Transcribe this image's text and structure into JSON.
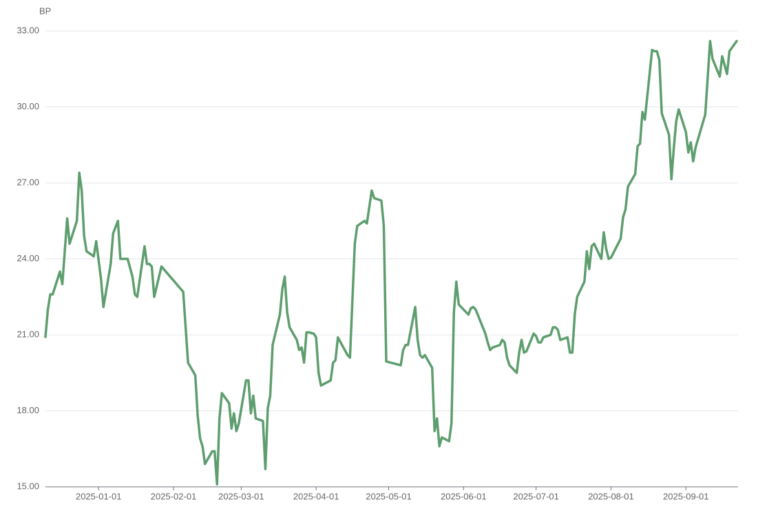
{
  "chart_data": {
    "type": "line",
    "y_label": "BP",
    "color": "#5e9e6e",
    "grid": true,
    "ylim": [
      15,
      33
    ],
    "yticks": [
      {
        "value": 15,
        "label": "15.00"
      },
      {
        "value": 18,
        "label": "18.00"
      },
      {
        "value": 21,
        "label": "21.00"
      },
      {
        "value": 24,
        "label": "24.00"
      },
      {
        "value": 27,
        "label": "27.00"
      },
      {
        "value": 30,
        "label": "30.00"
      },
      {
        "value": 33,
        "label": "33.00"
      }
    ],
    "xlim": [
      "2024-12-10",
      "2025-09-22"
    ],
    "xticks": [
      "2025-01-01",
      "2025-02-01",
      "2025-03-01",
      "2025-04-01",
      "2025-05-01",
      "2025-06-01",
      "2025-07-01",
      "2025-08-01",
      "2025-09-01"
    ],
    "x": [
      "2024-12-10",
      "2024-12-11",
      "2024-12-12",
      "2024-12-13",
      "2024-12-16",
      "2024-12-17",
      "2024-12-19",
      "2024-12-20",
      "2024-12-23",
      "2024-12-24",
      "2024-12-25",
      "2024-12-26",
      "2024-12-27",
      "2024-12-30",
      "2024-12-31",
      "2025-01-02",
      "2025-01-03",
      "2025-01-06",
      "2025-01-07",
      "2025-01-09",
      "2025-01-10",
      "2025-01-13",
      "2025-01-15",
      "2025-01-16",
      "2025-01-17",
      "2025-01-20",
      "2025-01-21",
      "2025-01-22",
      "2025-01-23",
      "2025-01-24",
      "2025-01-27",
      "2025-02-05",
      "2025-02-07",
      "2025-02-10",
      "2025-02-11",
      "2025-02-12",
      "2025-02-13",
      "2025-02-14",
      "2025-02-17",
      "2025-02-18",
      "2025-02-19",
      "2025-02-20",
      "2025-02-21",
      "2025-02-24",
      "2025-02-25",
      "2025-02-26",
      "2025-02-27",
      "2025-02-28",
      "2025-03-03",
      "2025-03-04",
      "2025-03-05",
      "2025-03-06",
      "2025-03-07",
      "2025-03-10",
      "2025-03-11",
      "2025-03-12",
      "2025-03-13",
      "2025-03-14",
      "2025-03-17",
      "2025-03-18",
      "2025-03-19",
      "2025-03-20",
      "2025-03-21",
      "2025-03-24",
      "2025-03-25",
      "2025-03-26",
      "2025-03-27",
      "2025-03-28",
      "2025-03-29",
      "2025-03-31",
      "2025-04-01",
      "2025-04-02",
      "2025-04-03",
      "2025-04-07",
      "2025-04-08",
      "2025-04-09",
      "2025-04-10",
      "2025-04-14",
      "2025-04-15",
      "2025-04-17",
      "2025-04-18",
      "2025-04-21",
      "2025-04-22",
      "2025-04-24",
      "2025-04-25",
      "2025-04-28",
      "2025-04-29",
      "2025-04-30",
      "2025-05-06",
      "2025-05-07",
      "2025-05-08",
      "2025-05-09",
      "2025-05-12",
      "2025-05-13",
      "2025-05-14",
      "2025-05-15",
      "2025-05-16",
      "2025-05-19",
      "2025-05-20",
      "2025-05-21",
      "2025-05-22",
      "2025-05-23",
      "2025-05-26",
      "2025-05-27",
      "2025-05-28",
      "2025-05-29",
      "2025-05-30",
      "2025-06-03",
      "2025-06-04",
      "2025-06-05",
      "2025-06-06",
      "2025-06-10",
      "2025-06-11",
      "2025-06-12",
      "2025-06-13",
      "2025-06-16",
      "2025-06-17",
      "2025-06-18",
      "2025-06-19",
      "2025-06-20",
      "2025-06-23",
      "2025-06-24",
      "2025-06-25",
      "2025-06-26",
      "2025-06-27",
      "2025-06-30",
      "2025-07-01",
      "2025-07-02",
      "2025-07-03",
      "2025-07-04",
      "2025-07-07",
      "2025-07-08",
      "2025-07-09",
      "2025-07-10",
      "2025-07-11",
      "2025-07-14",
      "2025-07-15",
      "2025-07-16",
      "2025-07-17",
      "2025-07-18",
      "2025-07-21",
      "2025-07-22",
      "2025-07-23",
      "2025-07-24",
      "2025-07-25",
      "2025-07-26",
      "2025-07-28",
      "2025-07-29",
      "2025-07-30",
      "2025-07-31",
      "2025-08-01",
      "2025-08-05",
      "2025-08-06",
      "2025-08-07",
      "2025-08-08",
      "2025-08-11",
      "2025-08-12",
      "2025-08-13",
      "2025-08-14",
      "2025-08-15",
      "2025-08-18",
      "2025-08-19",
      "2025-08-20",
      "2025-08-21",
      "2025-08-22",
      "2025-08-25",
      "2025-08-26",
      "2025-08-27",
      "2025-08-28",
      "2025-08-29",
      "2025-09-01",
      "2025-09-02",
      "2025-09-03",
      "2025-09-04",
      "2025-09-05",
      "2025-09-09",
      "2025-09-11",
      "2025-09-12",
      "2025-09-15",
      "2025-09-16",
      "2025-09-18",
      "2025-09-19",
      "2025-09-22"
    ],
    "values": [
      20.92,
      22.0,
      22.6,
      22.6,
      23.5,
      23.0,
      25.6,
      24.6,
      25.5,
      27.4,
      26.7,
      24.9,
      24.3,
      24.1,
      24.7,
      23.2,
      22.1,
      23.8,
      25.0,
      25.5,
      24.0,
      24.0,
      23.3,
      22.6,
      22.5,
      24.5,
      23.8,
      23.8,
      23.7,
      22.5,
      23.7,
      22.7,
      19.9,
      19.4,
      17.8,
      16.9,
      16.6,
      15.9,
      16.4,
      16.4,
      15.1,
      17.7,
      18.7,
      18.3,
      17.3,
      17.9,
      17.2,
      17.5,
      19.2,
      19.2,
      17.9,
      18.6,
      17.7,
      17.6,
      15.7,
      18.1,
      18.6,
      20.6,
      21.8,
      22.8,
      23.3,
      21.9,
      21.3,
      20.8,
      20.4,
      20.5,
      19.9,
      21.1,
      21.1,
      21.05,
      20.9,
      19.5,
      19.0,
      19.2,
      19.9,
      20.0,
      20.9,
      20.2,
      20.1,
      24.6,
      25.3,
      25.5,
      25.4,
      26.7,
      26.4,
      26.3,
      25.3,
      19.95,
      19.8,
      20.4,
      20.6,
      20.6,
      22.1,
      20.8,
      20.2,
      20.1,
      20.2,
      19.7,
      17.2,
      17.7,
      16.6,
      16.95,
      16.8,
      17.5,
      21.9,
      23.1,
      22.2,
      21.8,
      22.05,
      22.1,
      22.0,
      21.05,
      20.7,
      20.4,
      20.5,
      20.6,
      20.8,
      20.7,
      20.1,
      19.8,
      19.5,
      20.3,
      20.8,
      20.3,
      20.35,
      21.05,
      20.95,
      20.7,
      20.7,
      20.9,
      21.0,
      21.3,
      21.3,
      21.2,
      20.8,
      20.9,
      20.3,
      20.3,
      21.8,
      22.5,
      23.1,
      24.3,
      23.6,
      24.5,
      24.6,
      24.4,
      24.0,
      25.05,
      24.4,
      24.0,
      24.05,
      24.8,
      25.65,
      25.95,
      26.85,
      27.35,
      28.45,
      28.55,
      29.8,
      29.5,
      32.25,
      32.2,
      32.2,
      31.85,
      29.75,
      28.9,
      27.15,
      28.4,
      29.45,
      29.9,
      29.0,
      28.2,
      28.6,
      27.85,
      28.4,
      29.7,
      32.6,
      31.9,
      31.2,
      32.0,
      31.3,
      32.2,
      32.6
    ]
  }
}
